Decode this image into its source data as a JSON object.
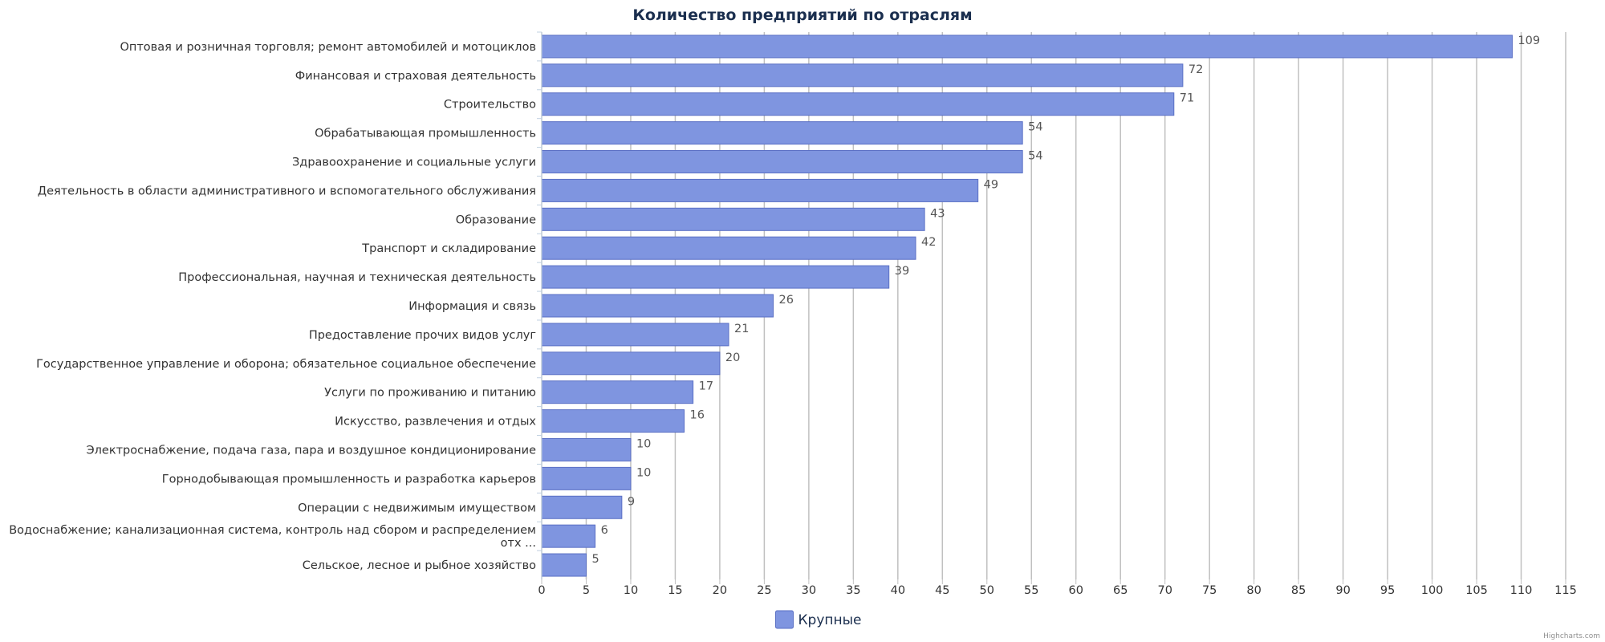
{
  "chart_data": {
    "type": "bar",
    "orientation": "horizontal",
    "title": "Количество предприятий по отраслям",
    "categories": [
      "Оптовая и розничная торговля; ремонт автомобилей и мотоциклов",
      "Финансовая и страховая деятельность",
      "Строительство",
      "Обрабатывающая промышленность",
      "Здравоохранение и социальные услуги",
      "Деятельность в области административного и вспомогательного обслуживания",
      "Образование",
      "Транспорт и складирование",
      "Профессиональная, научная и техническая деятельность",
      "Информация и связь",
      "Предоставление прочих видов услуг",
      "Государственное управление и оборона; обязательное социальное обеспечение",
      "Услуги по проживанию и питанию",
      "Искусство, развлечения и отдых",
      "Электроснабжение, подача газа, пара и воздушное кондиционирование",
      "Горнодобывающая промышленность и разработка карьеров",
      "Операции с недвижимым имуществом",
      "Водоснабжение; канализационная система, контроль над сбором и распределением отх ...",
      "Сельское, лесное и рыбное хозяйство"
    ],
    "series": [
      {
        "name": "Крупные",
        "color": "#7f95e0",
        "values": [
          109,
          72,
          71,
          54,
          54,
          49,
          43,
          42,
          39,
          26,
          21,
          20,
          17,
          16,
          10,
          10,
          9,
          6,
          5
        ]
      }
    ],
    "xlim": [
      0,
      115
    ],
    "x_ticks": [
      0,
      5,
      10,
      15,
      20,
      25,
      30,
      35,
      40,
      45,
      50,
      55,
      60,
      65,
      70,
      75,
      80,
      85,
      90,
      95,
      100,
      105,
      110,
      115
    ],
    "grid": true,
    "legend_position": "bottom-center",
    "credits": "Highcharts.com"
  }
}
